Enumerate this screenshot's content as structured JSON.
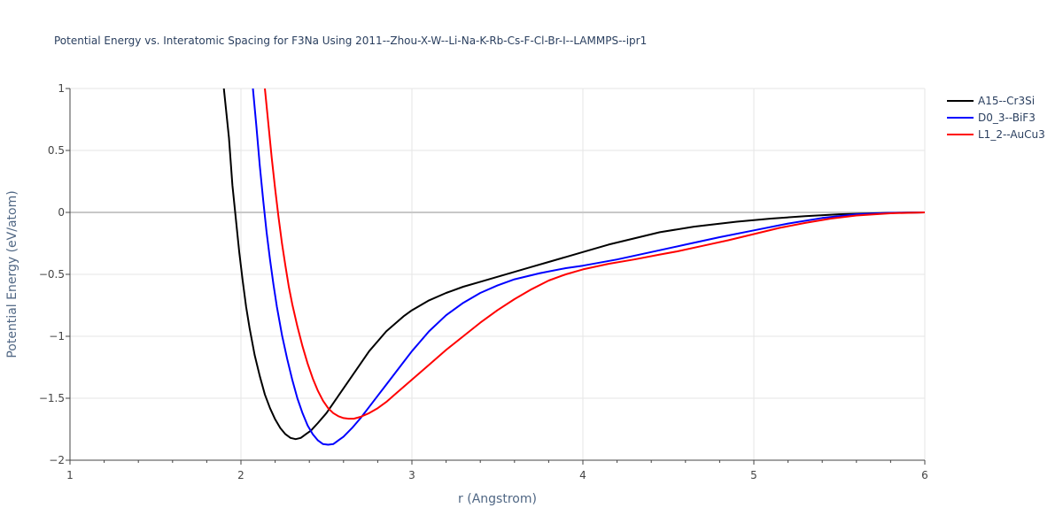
{
  "chart_data": {
    "type": "line",
    "title": "Potential Energy vs. Interatomic Spacing for F3Na Using 2011--Zhou-X-W--Li-Na-K-Rb-Cs-F-Cl-Br-I--LAMMPS--ipr1",
    "xlabel": "r (Angstrom)",
    "ylabel": "Potential Energy (eV/atom)",
    "xlim": [
      1,
      6
    ],
    "ylim": [
      -2,
      1
    ],
    "xticks": [
      1,
      2,
      3,
      4,
      5,
      6
    ],
    "xtick_labels": [
      "1",
      "2",
      "3",
      "4",
      "5",
      "6"
    ],
    "yticks": [
      -2,
      -1.5,
      -1,
      -0.5,
      0,
      0.5,
      1
    ],
    "ytick_labels": [
      "−2",
      "−1.5",
      "−1",
      "−0.5",
      "0",
      "0.5",
      "1"
    ],
    "grid": true,
    "legend_position": "top-right",
    "series": [
      {
        "name": "A15--Cr3Si",
        "color": "#000000",
        "x": [
          1.9,
          1.93,
          1.95,
          1.97,
          1.99,
          2.01,
          2.03,
          2.05,
          2.08,
          2.11,
          2.14,
          2.17,
          2.2,
          2.23,
          2.26,
          2.29,
          2.32,
          2.35,
          2.38,
          2.41,
          2.45,
          2.5,
          2.55,
          2.6,
          2.65,
          2.7,
          2.75,
          2.8,
          2.85,
          2.9,
          2.95,
          3.0,
          3.1,
          3.2,
          3.3,
          3.4,
          3.5,
          3.6,
          3.7,
          3.8,
          3.9,
          4.0,
          4.15,
          4.3,
          4.45,
          4.65,
          4.9,
          5.1,
          5.3,
          5.5,
          5.7,
          5.9,
          6.0
        ],
        "y": [
          1.0,
          0.6,
          0.22,
          -0.05,
          -0.32,
          -0.55,
          -0.76,
          -0.93,
          -1.15,
          -1.32,
          -1.47,
          -1.58,
          -1.67,
          -1.74,
          -1.79,
          -1.82,
          -1.83,
          -1.82,
          -1.79,
          -1.76,
          -1.7,
          -1.62,
          -1.52,
          -1.42,
          -1.32,
          -1.22,
          -1.12,
          -1.04,
          -0.96,
          -0.9,
          -0.84,
          -0.79,
          -0.71,
          -0.65,
          -0.6,
          -0.56,
          -0.52,
          -0.48,
          -0.44,
          -0.4,
          -0.36,
          -0.32,
          -0.26,
          -0.21,
          -0.16,
          -0.115,
          -0.075,
          -0.05,
          -0.03,
          -0.015,
          -0.007,
          -0.002,
          0.0
        ]
      },
      {
        "name": "D0_3--BiF3",
        "color": "#0000ff",
        "x": [
          2.07,
          2.09,
          2.11,
          2.13,
          2.15,
          2.17,
          2.19,
          2.21,
          2.24,
          2.27,
          2.3,
          2.33,
          2.36,
          2.39,
          2.42,
          2.45,
          2.48,
          2.51,
          2.54,
          2.57,
          2.6,
          2.65,
          2.7,
          2.75,
          2.8,
          2.85,
          2.9,
          2.95,
          3.0,
          3.05,
          3.1,
          3.2,
          3.3,
          3.4,
          3.5,
          3.6,
          3.75,
          3.9,
          4.0,
          4.2,
          4.4,
          4.6,
          4.8,
          5.0,
          5.2,
          5.4,
          5.6,
          5.8,
          6.0
        ],
        "y": [
          1.0,
          0.7,
          0.38,
          0.1,
          -0.16,
          -0.38,
          -0.58,
          -0.76,
          -0.99,
          -1.18,
          -1.35,
          -1.5,
          -1.62,
          -1.72,
          -1.79,
          -1.84,
          -1.87,
          -1.875,
          -1.87,
          -1.84,
          -1.81,
          -1.74,
          -1.66,
          -1.57,
          -1.48,
          -1.39,
          -1.3,
          -1.21,
          -1.12,
          -1.04,
          -0.96,
          -0.83,
          -0.73,
          -0.65,
          -0.59,
          -0.54,
          -0.49,
          -0.45,
          -0.43,
          -0.38,
          -0.32,
          -0.26,
          -0.2,
          -0.145,
          -0.09,
          -0.045,
          -0.015,
          -0.004,
          0.0
        ]
      },
      {
        "name": "L1_2--AuCu3",
        "color": "#ff0000",
        "x": [
          2.14,
          2.16,
          2.18,
          2.2,
          2.22,
          2.24,
          2.26,
          2.28,
          2.3,
          2.33,
          2.36,
          2.39,
          2.42,
          2.45,
          2.48,
          2.51,
          2.54,
          2.57,
          2.6,
          2.63,
          2.66,
          2.7,
          2.75,
          2.8,
          2.85,
          2.9,
          2.95,
          3.0,
          3.1,
          3.2,
          3.3,
          3.4,
          3.5,
          3.6,
          3.7,
          3.8,
          3.9,
          4.0,
          4.15,
          4.3,
          4.45,
          4.55,
          4.7,
          4.85,
          5.0,
          5.15,
          5.3,
          5.45,
          5.6,
          5.8,
          6.0
        ],
        "y": [
          1.0,
          0.72,
          0.44,
          0.19,
          -0.04,
          -0.25,
          -0.43,
          -0.6,
          -0.74,
          -0.92,
          -1.08,
          -1.22,
          -1.34,
          -1.44,
          -1.52,
          -1.58,
          -1.62,
          -1.645,
          -1.66,
          -1.665,
          -1.665,
          -1.65,
          -1.62,
          -1.58,
          -1.53,
          -1.47,
          -1.41,
          -1.35,
          -1.23,
          -1.11,
          -1.0,
          -0.89,
          -0.79,
          -0.7,
          -0.62,
          -0.55,
          -0.5,
          -0.46,
          -0.415,
          -0.38,
          -0.34,
          -0.315,
          -0.27,
          -0.225,
          -0.175,
          -0.125,
          -0.085,
          -0.05,
          -0.025,
          -0.007,
          0.0
        ]
      }
    ]
  }
}
